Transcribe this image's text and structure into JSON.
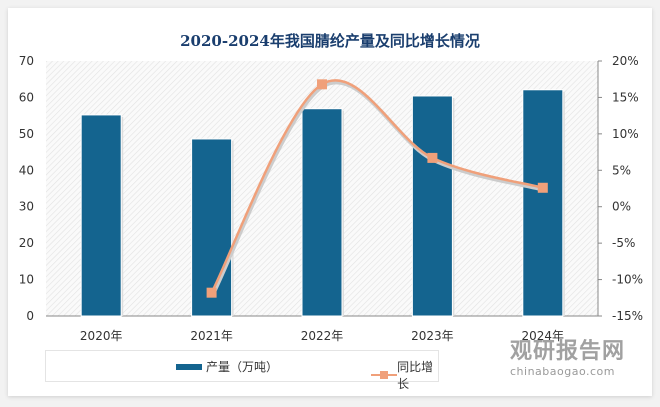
{
  "chart_data": {
    "type": "bar+line",
    "title": "2020-2024年我国腈纶产量及同比增长情况",
    "categories": [
      "2020年",
      "2021年",
      "2022年",
      "2023年",
      "2024年"
    ],
    "series": [
      {
        "name": "产量（万吨）",
        "type": "bar",
        "axis": "left",
        "color": "#14648f",
        "values": [
          55.2,
          48.6,
          56.9,
          60.4,
          62.1
        ]
      },
      {
        "name": "同比增长",
        "type": "line",
        "axis": "right",
        "color": "#f0a07a",
        "marker": "square",
        "smooth": true,
        "values": [
          null,
          -11.8,
          16.8,
          6.7,
          2.6
        ]
      }
    ],
    "y_left": {
      "min": 0,
      "max": 70,
      "ticks": [
        0,
        10,
        20,
        30,
        40,
        50,
        60,
        70
      ]
    },
    "y_right": {
      "min": -15,
      "max": 20,
      "ticks": [
        "-15%",
        "-10%",
        "-5%",
        "0%",
        "5%",
        "10%",
        "15%",
        "20%"
      ]
    },
    "legend_position": "bottom",
    "grid": false
  },
  "watermark": {
    "cn": "观研报告网",
    "en": "chinabaogao.com"
  }
}
